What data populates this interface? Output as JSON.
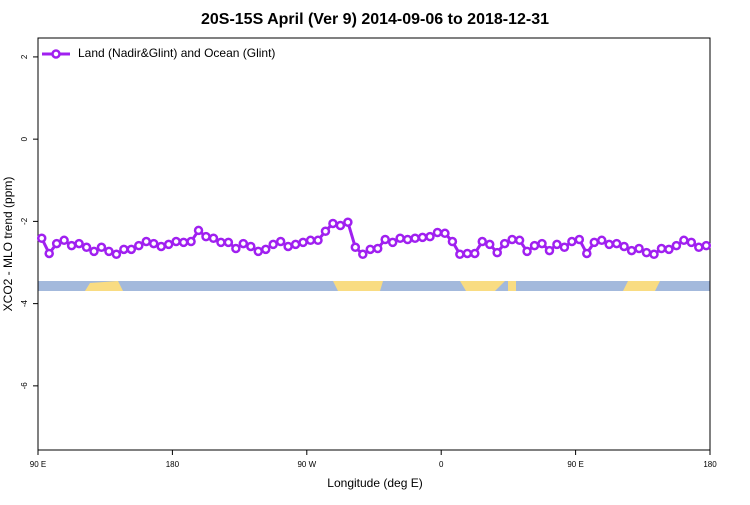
{
  "chart_data": {
    "type": "line",
    "title": "20S-15S April (Ver 9)   2014-09-06 to 2018-12-31",
    "x_label": "Longitude (deg E)",
    "y_label": "XCO2 - MLO trend (ppm)",
    "xlim": [
      90,
      540
    ],
    "ylim": [
      -7.56,
      2.46
    ],
    "xticks": [
      {
        "value": 90,
        "label": "90 E"
      },
      180,
      {
        "value": 270,
        "label": "90 W"
      },
      {
        "value": 360,
        "label": "0"
      },
      {
        "value": 450,
        "label": "90 E"
      },
      {
        "value": 540,
        "label": "180"
      }
    ],
    "yticks": [
      2,
      0,
      -2,
      -4,
      -6
    ],
    "legend": "top-left",
    "x": [
      92.5,
      97.5,
      102.5,
      107.5,
      112.5,
      117.5,
      122.5,
      127.5,
      132.5,
      137.5,
      142.5,
      147.5,
      152.5,
      157.5,
      162.5,
      167.5,
      172.5,
      177.5,
      182.5,
      187.5,
      192.5,
      197.5,
      202.5,
      207.5,
      212.5,
      217.5,
      222.5,
      227.5,
      232.5,
      237.5,
      242.5,
      247.5,
      252.5,
      257.5,
      262.5,
      267.5,
      272.5,
      277.5,
      282.5,
      287.5,
      292.5,
      297.5,
      302.5,
      307.5,
      312.5,
      317.5,
      322.5,
      327.5,
      332.5,
      337.5,
      342.5,
      347.5,
      352.5,
      357.5,
      362.5,
      367.5,
      372.5,
      377.5,
      382.5,
      387.5,
      392.5,
      397.5,
      402.5,
      407.5,
      412.5,
      417.5,
      422.5,
      427.5,
      432.5,
      437.5,
      442.5,
      447.5,
      452.5,
      457.5,
      462.5,
      467.5,
      472.5,
      477.5,
      482.5,
      487.5,
      492.5,
      497.5,
      502.5,
      507.5,
      512.5,
      517.5,
      522.5,
      527.5,
      532.5,
      537.5
    ],
    "series": [
      {
        "name": "Land (Nadir&Glint) and Ocean (Glint)",
        "color": "#a020f0",
        "values": [
          -2.41,
          -2.78,
          -2.54,
          -2.46,
          -2.59,
          -2.54,
          -2.63,
          -2.73,
          -2.63,
          -2.73,
          -2.8,
          -2.68,
          -2.68,
          -2.59,
          -2.49,
          -2.54,
          -2.61,
          -2.56,
          -2.49,
          -2.51,
          -2.49,
          -2.22,
          -2.37,
          -2.41,
          -2.51,
          -2.51,
          -2.66,
          -2.54,
          -2.61,
          -2.73,
          -2.68,
          -2.56,
          -2.49,
          -2.61,
          -2.56,
          -2.51,
          -2.46,
          -2.46,
          -2.24,
          -2.05,
          -2.1,
          -2.02,
          -2.63,
          -2.8,
          -2.68,
          -2.66,
          -2.44,
          -2.51,
          -2.41,
          -2.44,
          -2.41,
          -2.39,
          -2.37,
          -2.27,
          -2.29,
          -2.49,
          -2.8,
          -2.78,
          -2.78,
          -2.49,
          -2.56,
          -2.76,
          -2.54,
          -2.44,
          -2.46,
          -2.73,
          -2.59,
          -2.54,
          -2.71,
          -2.56,
          -2.63,
          -2.49,
          -2.44,
          -2.78,
          -2.51,
          -2.46,
          -2.56,
          -2.54,
          -2.61,
          -2.71,
          -2.66,
          -2.76,
          -2.8,
          -2.66,
          -2.68,
          -2.59,
          -2.46,
          -2.51,
          -2.63,
          -2.59
        ]
      }
    ]
  }
}
